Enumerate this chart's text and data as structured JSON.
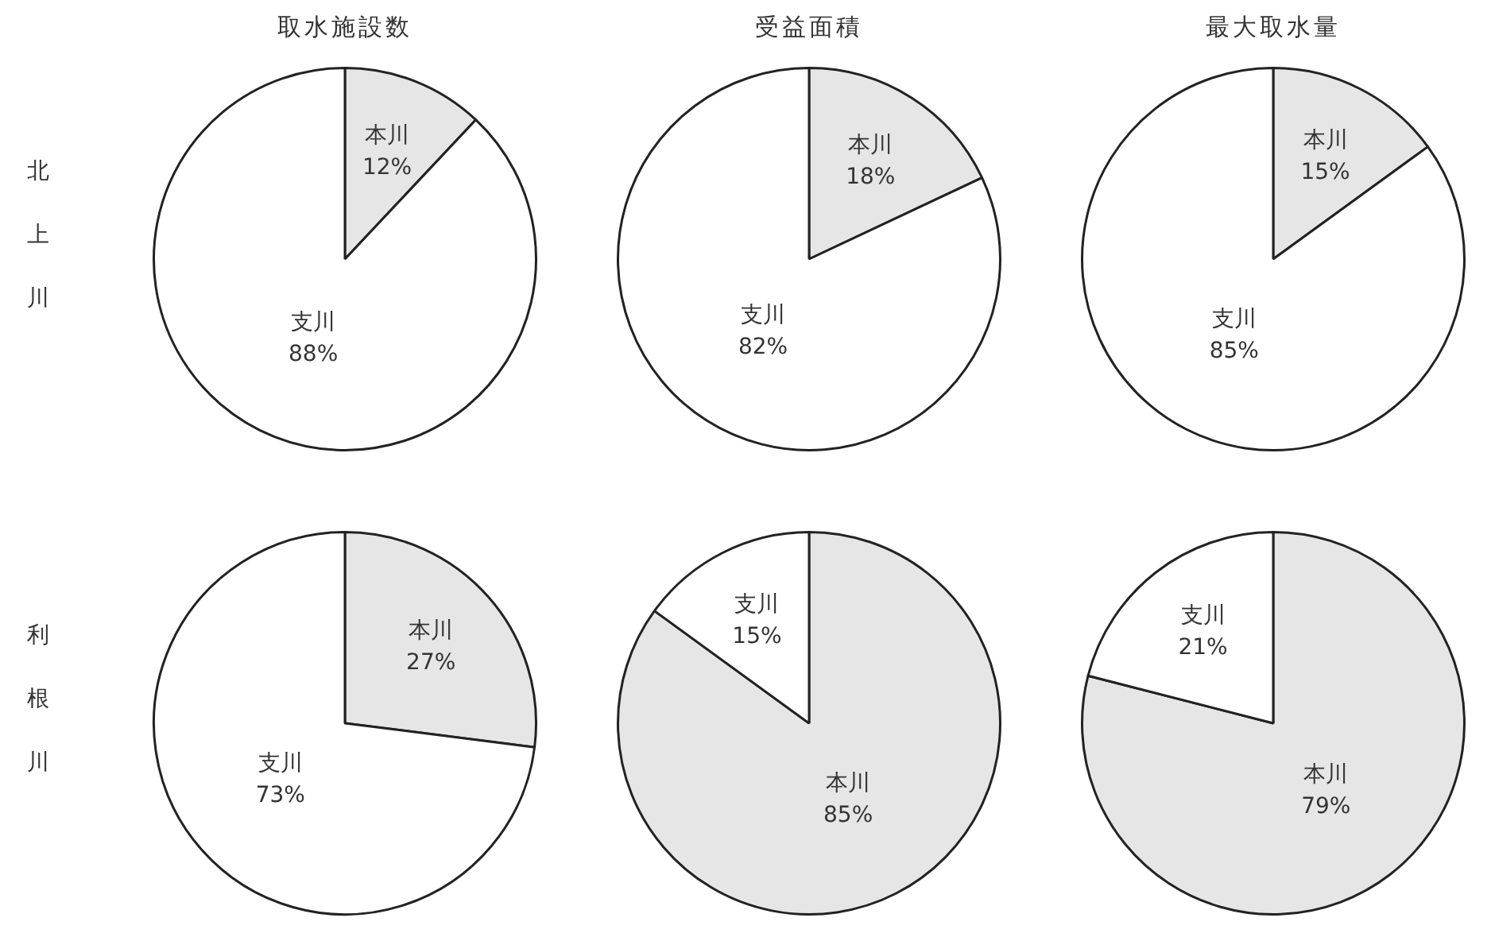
{
  "chart_data": [
    {
      "type": "pie",
      "title": "取水施設数",
      "ylabel": "北上川",
      "categories": [
        "本川",
        "支川"
      ],
      "values": [
        12,
        88
      ],
      "value_labels": [
        "12%",
        "88%"
      ],
      "colors": [
        "#e6e6e6",
        "#ffffff"
      ]
    },
    {
      "type": "pie",
      "title": "受益面積",
      "categories": [
        "本川",
        "支川"
      ],
      "values": [
        18,
        82
      ],
      "value_labels": [
        "18%",
        "82%"
      ],
      "colors": [
        "#e6e6e6",
        "#ffffff"
      ]
    },
    {
      "type": "pie",
      "title": "最大取水量",
      "categories": [
        "本川",
        "支川"
      ],
      "values": [
        15,
        85
      ],
      "value_labels": [
        "15%",
        "85%"
      ],
      "colors": [
        "#e6e6e6",
        "#ffffff"
      ]
    },
    {
      "type": "pie",
      "ylabel": "利根川",
      "categories": [
        "本川",
        "支川"
      ],
      "values": [
        27,
        73
      ],
      "value_labels": [
        "27%",
        "73%"
      ],
      "colors": [
        "#e6e6e6",
        "#ffffff"
      ]
    },
    {
      "type": "pie",
      "categories": [
        "本川",
        "支川"
      ],
      "values": [
        85,
        15
      ],
      "value_labels": [
        "85%",
        "15%"
      ],
      "colors": [
        "#e6e6e6",
        "#ffffff"
      ]
    },
    {
      "type": "pie",
      "categories": [
        "本川",
        "支川"
      ],
      "values": [
        79,
        21
      ],
      "value_labels": [
        "79%",
        "21%"
      ],
      "colors": [
        "#e6e6e6",
        "#ffffff"
      ]
    }
  ]
}
